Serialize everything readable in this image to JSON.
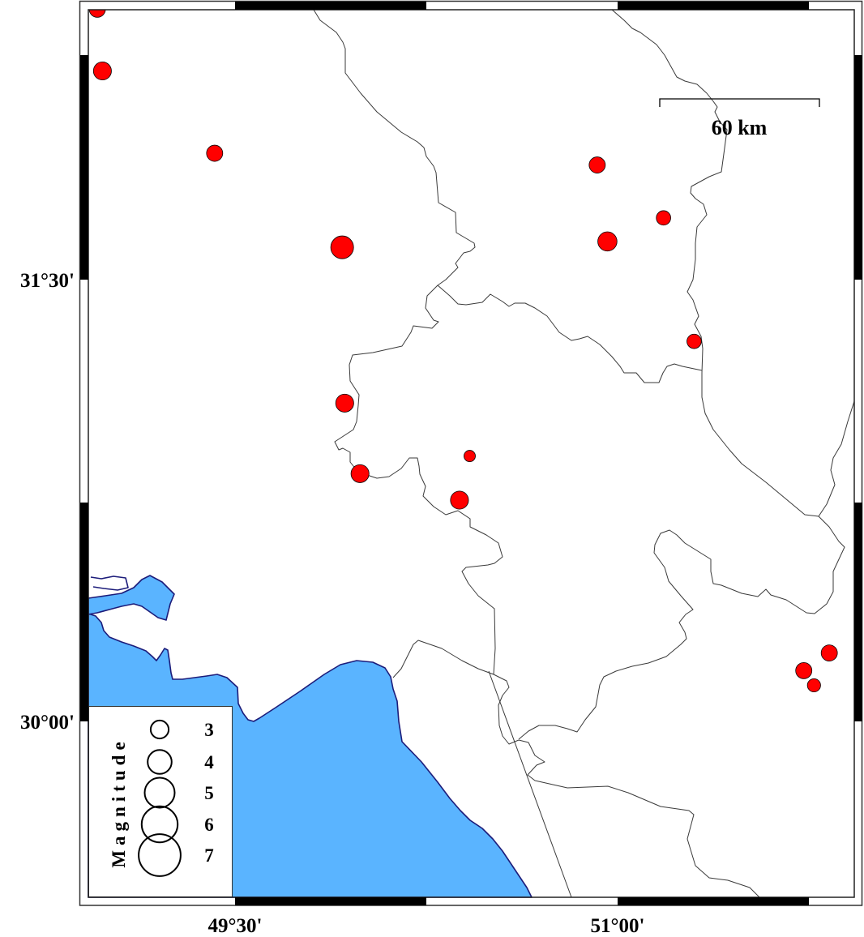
{
  "map": {
    "axes": {
      "longitude_ticks": [
        {
          "label": "49°30'",
          "value": 49.5
        },
        {
          "label": "51°00'",
          "value": 51.0
        }
      ],
      "latitude_ticks": [
        {
          "label": "31°30'",
          "value": 31.5
        },
        {
          "label": "30°00'",
          "value": 30.0
        }
      ]
    },
    "scale_bar": {
      "label": "60 km"
    },
    "legend": {
      "title": "Magnitude",
      "entries": [
        {
          "label": "3",
          "magnitude": 3
        },
        {
          "label": "4",
          "magnitude": 4
        },
        {
          "label": "5",
          "magnitude": 5
        },
        {
          "label": "6",
          "magnitude": 6
        },
        {
          "label": "7",
          "magnitude": 7
        }
      ]
    },
    "earthquakes": [
      {
        "lon": 48.96,
        "lat": 32.42,
        "mag": 2.7
      },
      {
        "lon": 48.98,
        "lat": 32.21,
        "mag": 3.0
      },
      {
        "lon": 49.42,
        "lat": 31.93,
        "mag": 2.7
      },
      {
        "lon": 49.92,
        "lat": 31.61,
        "mag": 3.8
      },
      {
        "lon": 50.92,
        "lat": 31.89,
        "mag": 2.7
      },
      {
        "lon": 51.18,
        "lat": 31.71,
        "mag": 2.4
      },
      {
        "lon": 50.96,
        "lat": 31.63,
        "mag": 3.2
      },
      {
        "lon": 51.3,
        "lat": 31.29,
        "mag": 2.4
      },
      {
        "lon": 49.93,
        "lat": 31.08,
        "mag": 3.0
      },
      {
        "lon": 50.42,
        "lat": 30.9,
        "mag": 1.9
      },
      {
        "lon": 49.99,
        "lat": 30.84,
        "mag": 3.0
      },
      {
        "lon": 50.38,
        "lat": 30.75,
        "mag": 3.0
      },
      {
        "lon": 51.83,
        "lat": 30.23,
        "mag": 2.7
      },
      {
        "lon": 51.73,
        "lat": 30.17,
        "mag": 2.7
      },
      {
        "lon": 51.77,
        "lat": 30.12,
        "mag": 2.2
      }
    ],
    "colors": {
      "sea": "#5ab4ff",
      "coastline": "#1c1c7a",
      "earthquake_fill": "#ff0000",
      "boundary": "#3a3a3a",
      "land": "#ffffff"
    }
  }
}
